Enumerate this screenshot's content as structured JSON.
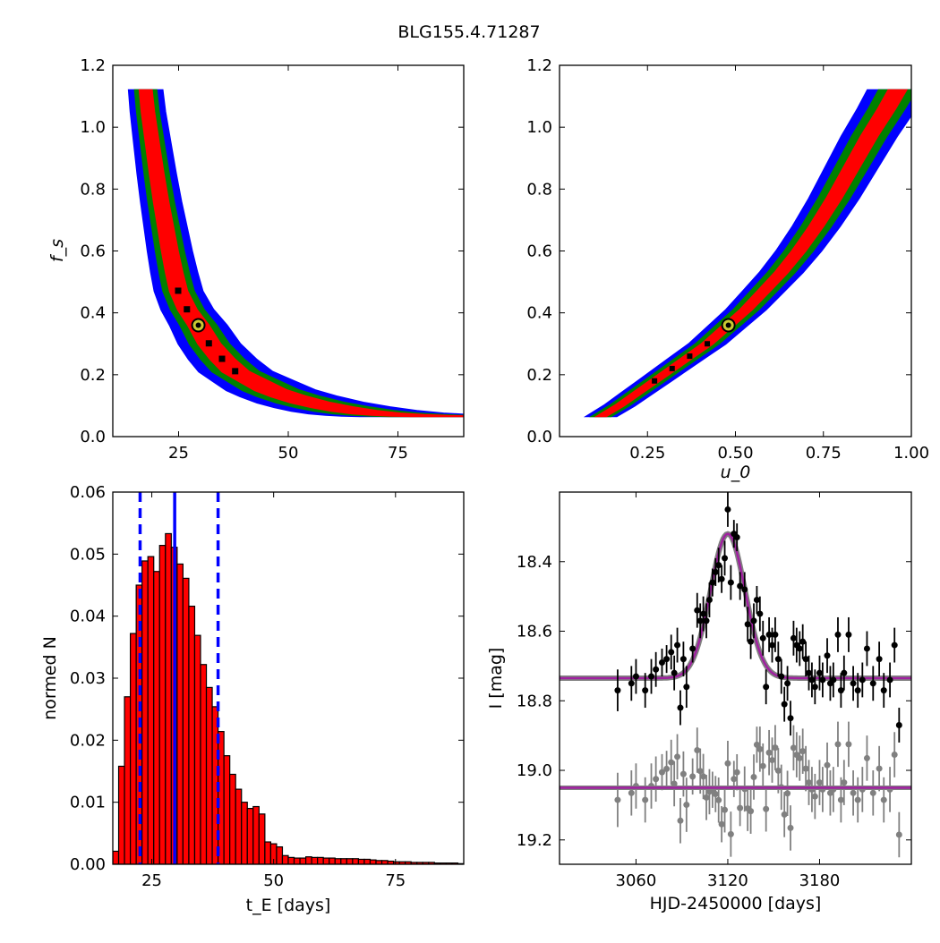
{
  "figure": {
    "title": "BLG155.4.71287"
  },
  "chart_data": [
    {
      "id": "fs_vs_tE",
      "type": "heatmap",
      "xlabel": "",
      "ylabel": "f_s",
      "xlim": [
        10,
        90
      ],
      "ylim": [
        0,
        1.2
      ],
      "xticks": [
        25,
        50,
        75
      ],
      "yticks": [
        0.0,
        0.2,
        0.4,
        0.6,
        0.8,
        1.0,
        1.2
      ],
      "colors": {
        "3sigma": "#0000ff",
        "2sigma": "#008000",
        "1sigma": "#ff0000",
        "best": "#000000",
        "marker_fill": "#c8c832"
      },
      "best_fit": {
        "x": 29.5,
        "y": 0.36
      },
      "ridge": [
        [
          17.5,
          1.12
        ],
        [
          18,
          1.05
        ],
        [
          19,
          0.95
        ],
        [
          20,
          0.85
        ],
        [
          21,
          0.76
        ],
        [
          22,
          0.68
        ],
        [
          23,
          0.6
        ],
        [
          24,
          0.53
        ],
        [
          25,
          0.47
        ],
        [
          27,
          0.41
        ],
        [
          29.5,
          0.36
        ],
        [
          32,
          0.3
        ],
        [
          35,
          0.25
        ],
        [
          38,
          0.21
        ],
        [
          42,
          0.18
        ],
        [
          46,
          0.15
        ],
        [
          50,
          0.13
        ],
        [
          55,
          0.11
        ],
        [
          60,
          0.095
        ],
        [
          65,
          0.083
        ],
        [
          70,
          0.075
        ],
        [
          75,
          0.07
        ],
        [
          80,
          0.067
        ],
        [
          85,
          0.066
        ]
      ],
      "ridge_halfwidth_frac": [
        0.08,
        0.14,
        0.22
      ]
    },
    {
      "id": "fs_vs_u0",
      "type": "heatmap",
      "xlabel": "u_0",
      "ylabel": "",
      "xlim": [
        0,
        1.0
      ],
      "ylim": [
        0,
        1.2
      ],
      "xticks": [
        0.25,
        0.5,
        0.75,
        1.0
      ],
      "xtick_labels": [
        "0.25",
        "0.50",
        "0.75",
        "1.00"
      ],
      "yticks": [
        0.0,
        0.2,
        0.4,
        0.6,
        0.8,
        1.0,
        1.2
      ],
      "best_fit": {
        "x": 0.48,
        "y": 0.36
      },
      "ridge": [
        [
          0.12,
          0.066
        ],
        [
          0.17,
          0.1
        ],
        [
          0.22,
          0.14
        ],
        [
          0.27,
          0.18
        ],
        [
          0.32,
          0.22
        ],
        [
          0.37,
          0.26
        ],
        [
          0.42,
          0.3
        ],
        [
          0.48,
          0.36
        ],
        [
          0.53,
          0.41
        ],
        [
          0.58,
          0.47
        ],
        [
          0.63,
          0.53
        ],
        [
          0.68,
          0.6
        ],
        [
          0.73,
          0.68
        ],
        [
          0.78,
          0.77
        ],
        [
          0.83,
          0.87
        ],
        [
          0.88,
          0.97
        ],
        [
          0.93,
          1.06
        ],
        [
          0.96,
          1.12
        ]
      ],
      "ridge_halfwidth": [
        0.012,
        0.025,
        0.04
      ]
    },
    {
      "id": "tE_histogram",
      "type": "bar",
      "xlabel": "t_E [days]",
      "ylabel": "normed N",
      "xlim": [
        17,
        89
      ],
      "ylim": [
        0,
        0.06
      ],
      "xticks": [
        25,
        50,
        75
      ],
      "yticks": [
        0.0,
        0.01,
        0.02,
        0.03,
        0.04,
        0.05,
        0.06
      ],
      "ytick_labels": [
        "0.00",
        "0.01",
        "0.02",
        "0.03",
        "0.04",
        "0.05",
        "0.06"
      ],
      "bin_width": 1.2,
      "bin_start": 17,
      "values": [
        0.0021,
        0.0158,
        0.027,
        0.0372,
        0.045,
        0.0489,
        0.0496,
        0.0472,
        0.0514,
        0.0533,
        0.0511,
        0.0484,
        0.0461,
        0.0416,
        0.0369,
        0.0322,
        0.0285,
        0.0254,
        0.0214,
        0.0175,
        0.0145,
        0.0121,
        0.01,
        0.009,
        0.0093,
        0.0081,
        0.0036,
        0.0033,
        0.0028,
        0.0014,
        0.0011,
        0.001,
        0.001,
        0.0012,
        0.0011,
        0.0011,
        0.001,
        0.001,
        0.0009,
        0.0009,
        0.0009,
        0.0009,
        0.0008,
        0.0008,
        0.0007,
        0.0006,
        0.0006,
        0.0005,
        0.0004,
        0.0004,
        0.0004,
        0.0003,
        0.0003,
        0.0003,
        0.0003,
        0.0002,
        0.0002,
        0.0002,
        0.0002,
        0.0001
      ],
      "bar_color": "#ff0000",
      "median_line": 29.7,
      "interval_lines": [
        22.6,
        38.6
      ],
      "line_color": "#0000ff"
    },
    {
      "id": "lightcurve",
      "type": "scatter",
      "xlabel": "HJD-2450000 [days]",
      "ylabel": "I [mag]",
      "xlim": [
        3010,
        3240
      ],
      "ylim": [
        19.27,
        18.2
      ],
      "xticks": [
        3060,
        3120,
        3180
      ],
      "yticks": [
        18.4,
        18.6,
        18.8,
        19.0,
        19.2
      ],
      "model": {
        "t0": 3120,
        "baseline": 18.735,
        "peak": 18.32,
        "width": 16
      },
      "residual_baseline": 19.05,
      "colors": {
        "data": "#000000",
        "residuals": "#808080",
        "model_outer": "#808080",
        "model_inner": "#a020a0"
      },
      "points": [
        [
          3048,
          18.77,
          0.06
        ],
        [
          3057,
          18.75,
          0.05
        ],
        [
          3060,
          18.73,
          0.05
        ],
        [
          3066,
          18.77,
          0.05
        ],
        [
          3070,
          18.73,
          0.05
        ],
        [
          3073,
          18.71,
          0.05
        ],
        [
          3077,
          18.69,
          0.04
        ],
        [
          3080,
          18.68,
          0.04
        ],
        [
          3083,
          18.66,
          0.05
        ],
        [
          3085,
          18.72,
          0.05
        ],
        [
          3087,
          18.64,
          0.05
        ],
        [
          3089,
          18.82,
          0.05
        ],
        [
          3091,
          18.68,
          0.05
        ],
        [
          3093,
          18.76,
          0.06
        ],
        [
          3097,
          18.65,
          0.04
        ],
        [
          3100,
          18.54,
          0.05
        ],
        [
          3102,
          18.57,
          0.05
        ],
        [
          3104,
          18.55,
          0.05
        ],
        [
          3106,
          18.57,
          0.05
        ],
        [
          3108,
          18.51,
          0.05
        ],
        [
          3110,
          18.46,
          0.04
        ],
        [
          3112,
          18.43,
          0.04
        ],
        [
          3114,
          18.41,
          0.05
        ],
        [
          3116,
          18.45,
          0.04
        ],
        [
          3118,
          18.39,
          0.05
        ],
        [
          3120,
          18.25,
          0.05
        ],
        [
          3122,
          18.46,
          0.05
        ],
        [
          3124,
          18.32,
          0.04
        ],
        [
          3126,
          18.33,
          0.04
        ],
        [
          3128,
          18.47,
          0.04
        ],
        [
          3131,
          18.48,
          0.05
        ],
        [
          3133,
          18.58,
          0.05
        ],
        [
          3135,
          18.63,
          0.05
        ],
        [
          3137,
          18.57,
          0.05
        ],
        [
          3139,
          18.51,
          0.04
        ],
        [
          3141,
          18.55,
          0.05
        ],
        [
          3143,
          18.62,
          0.05
        ],
        [
          3145,
          18.76,
          0.05
        ],
        [
          3147,
          18.61,
          0.05
        ],
        [
          3149,
          18.64,
          0.05
        ],
        [
          3151,
          18.61,
          0.05
        ],
        [
          3153,
          18.68,
          0.05
        ],
        [
          3155,
          18.73,
          0.05
        ],
        [
          3157,
          18.81,
          0.05
        ],
        [
          3159,
          18.75,
          0.05
        ],
        [
          3161,
          18.85,
          0.05
        ],
        [
          3163,
          18.62,
          0.05
        ],
        [
          3165,
          18.64,
          0.05
        ],
        [
          3167,
          18.65,
          0.05
        ],
        [
          3169,
          18.63,
          0.05
        ],
        [
          3171,
          18.68,
          0.05
        ],
        [
          3173,
          18.72,
          0.05
        ],
        [
          3175,
          18.74,
          0.05
        ],
        [
          3177,
          18.76,
          0.05
        ],
        [
          3180,
          18.72,
          0.05
        ],
        [
          3182,
          18.74,
          0.05
        ],
        [
          3185,
          18.67,
          0.05
        ],
        [
          3187,
          18.75,
          0.05
        ],
        [
          3189,
          18.74,
          0.05
        ],
        [
          3192,
          18.61,
          0.05
        ],
        [
          3194,
          18.77,
          0.05
        ],
        [
          3196,
          18.72,
          0.05
        ],
        [
          3199,
          18.61,
          0.05
        ],
        [
          3202,
          18.75,
          0.05
        ],
        [
          3205,
          18.77,
          0.05
        ],
        [
          3208,
          18.74,
          0.05
        ],
        [
          3211,
          18.65,
          0.05
        ],
        [
          3215,
          18.75,
          0.05
        ],
        [
          3219,
          18.68,
          0.05
        ],
        [
          3222,
          18.77,
          0.05
        ],
        [
          3226,
          18.74,
          0.05
        ],
        [
          3229,
          18.64,
          0.05
        ],
        [
          3232,
          18.87,
          0.05
        ]
      ]
    }
  ]
}
